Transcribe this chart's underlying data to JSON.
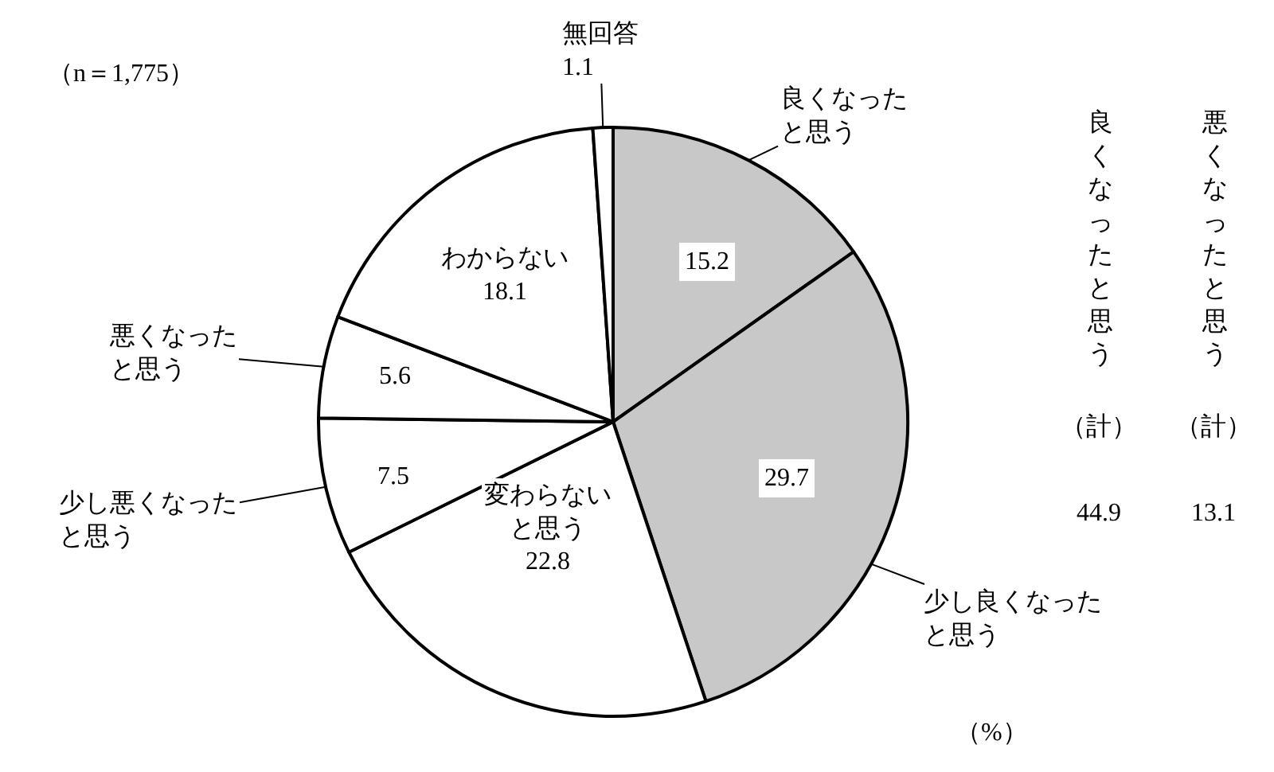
{
  "chart_data": {
    "type": "pie",
    "categories": [
      "良くなったと思う",
      "少し良くなったと思う",
      "変わらないと思う",
      "少し悪くなったと思う",
      "悪くなったと思う",
      "わからない",
      "無回答"
    ],
    "values": [
      15.2,
      29.7,
      22.8,
      7.5,
      5.6,
      18.1,
      1.1
    ],
    "colors": [
      "#c8c8c8",
      "#c8c8c8",
      "#ffffff",
      "#ffffff",
      "#ffffff",
      "#ffffff",
      "#ffffff"
    ],
    "data_labels": true,
    "legend": false,
    "annotations": [
      "（n＝1,775）",
      "（%）",
      "良くなったと思う",
      "（計）",
      "44.9",
      "悪くなったと思う",
      "（計）",
      "13.1"
    ]
  }
}
